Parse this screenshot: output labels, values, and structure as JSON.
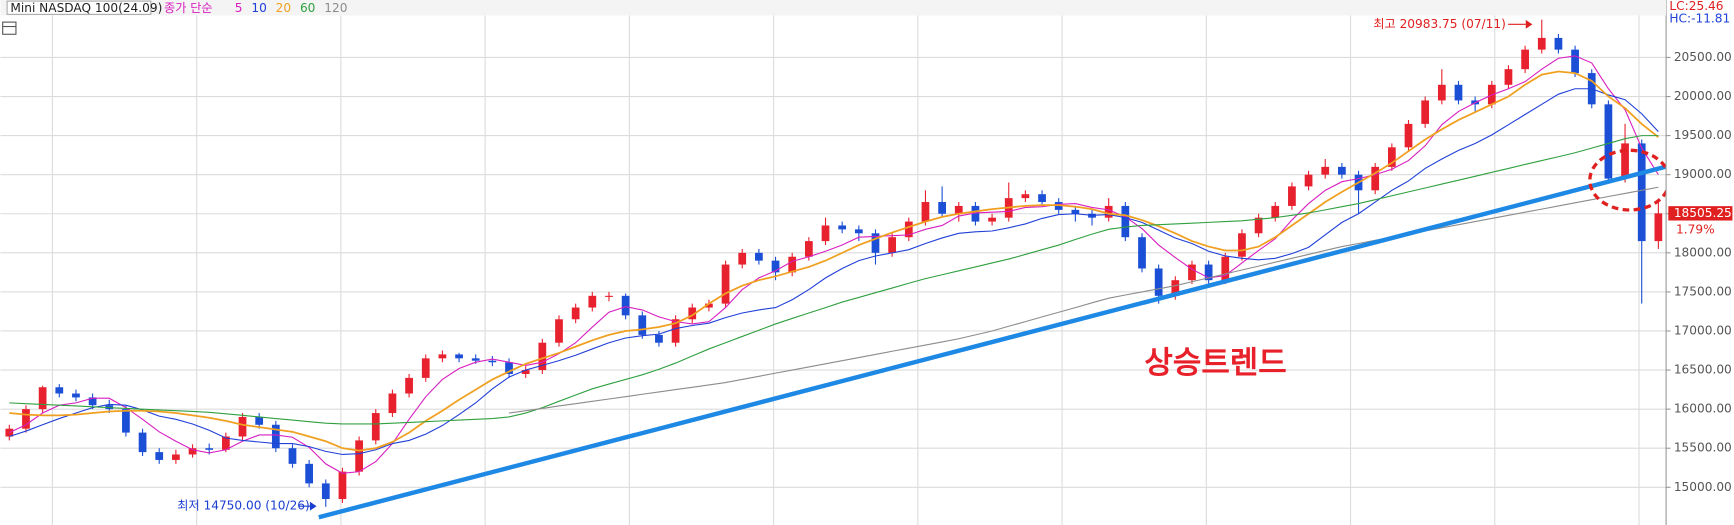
{
  "chart_data": {
    "type": "candlestick",
    "title": "Mini NASDAQ 100(24.09)",
    "ma_label": "종가 단순",
    "lc_label": "LC:25.46",
    "hc_label": "HC:-11.81",
    "high_annotation": "최고 20983.75 (07/11)",
    "low_annotation": "최저 14750.00 (10/26)",
    "trend_annotation": "상승트렌드",
    "change_label": "1.79%",
    "up_color": "#e8212e",
    "down_color": "#1a4fd6",
    "grid": true,
    "ylim": [
      14560,
      21235
    ],
    "yticks": [
      {
        "value": 15000,
        "label": "15000.00"
      },
      {
        "value": 15500,
        "label": "15500.00"
      },
      {
        "value": 16000,
        "label": "16000.00"
      },
      {
        "value": 16500,
        "label": "16500.00"
      },
      {
        "value": 17000,
        "label": "17000.00"
      },
      {
        "value": 17500,
        "label": "17500.00"
      },
      {
        "value": 18000,
        "label": "18000.00"
      },
      {
        "value": 18500,
        "label": "18500.00"
      },
      {
        "value": 19000,
        "label": "19000.00"
      },
      {
        "value": 19500,
        "label": "19500.00"
      },
      {
        "value": 20000,
        "label": "20000.00"
      },
      {
        "value": 20500,
        "label": "20500.00"
      }
    ],
    "ohlc": [
      [
        15650,
        15800,
        15600,
        15750
      ],
      [
        15750,
        16050,
        15700,
        16000
      ],
      [
        16000,
        16300,
        15950,
        16280
      ],
      [
        16280,
        16320,
        16150,
        16200
      ],
      [
        16200,
        16250,
        16100,
        16150
      ],
      [
        16150,
        16200,
        16000,
        16050
      ],
      [
        16050,
        16120,
        15950,
        16000
      ],
      [
        16000,
        16050,
        15650,
        15700
      ],
      [
        15700,
        15750,
        15400,
        15450
      ],
      [
        15450,
        15500,
        15300,
        15350
      ],
      [
        15350,
        15480,
        15300,
        15420
      ],
      [
        15420,
        15550,
        15380,
        15500
      ],
      [
        15500,
        15560,
        15420,
        15480
      ],
      [
        15480,
        15700,
        15450,
        15650
      ],
      [
        15650,
        15950,
        15600,
        15900
      ],
      [
        15900,
        15950,
        15750,
        15800
      ],
      [
        15800,
        15850,
        15450,
        15500
      ],
      [
        15500,
        15550,
        15250,
        15300
      ],
      [
        15300,
        15350,
        15000,
        15050
      ],
      [
        15050,
        15100,
        14750,
        14850
      ],
      [
        14850,
        15250,
        14800,
        15200
      ],
      [
        15200,
        15650,
        15150,
        15600
      ],
      [
        15600,
        16000,
        15550,
        15950
      ],
      [
        15950,
        16250,
        15900,
        16200
      ],
      [
        16200,
        16450,
        16150,
        16400
      ],
      [
        16400,
        16700,
        16350,
        16650
      ],
      [
        16650,
        16750,
        16600,
        16700
      ],
      [
        16700,
        16720,
        16600,
        16650
      ],
      [
        16650,
        16700,
        16580,
        16620
      ],
      [
        16620,
        16680,
        16550,
        16600
      ],
      [
        16600,
        16650,
        16400,
        16450
      ],
      [
        16450,
        16550,
        16400,
        16500
      ],
      [
        16500,
        16900,
        16450,
        16850
      ],
      [
        16850,
        17200,
        16800,
        17150
      ],
      [
        17150,
        17350,
        17100,
        17300
      ],
      [
        17300,
        17500,
        17250,
        17450
      ],
      [
        17450,
        17500,
        17380,
        17450
      ],
      [
        17450,
        17480,
        17150,
        17200
      ],
      [
        17200,
        17250,
        16900,
        16950
      ],
      [
        16950,
        17000,
        16800,
        16850
      ],
      [
        16850,
        17200,
        16800,
        17150
      ],
      [
        17150,
        17350,
        17100,
        17300
      ],
      [
        17300,
        17400,
        17250,
        17350
      ],
      [
        17350,
        17900,
        17300,
        17850
      ],
      [
        17850,
        18050,
        17800,
        18000
      ],
      [
        18000,
        18050,
        17850,
        17900
      ],
      [
        17900,
        17950,
        17650,
        17750
      ],
      [
        17750,
        18000,
        17700,
        17950
      ],
      [
        17950,
        18200,
        17900,
        18150
      ],
      [
        18150,
        18450,
        18100,
        18350
      ],
      [
        18350,
        18400,
        18250,
        18300
      ],
      [
        18300,
        18350,
        18150,
        18250
      ],
      [
        18250,
        18300,
        17850,
        18000
      ],
      [
        18000,
        18250,
        17950,
        18200
      ],
      [
        18200,
        18450,
        18150,
        18400
      ],
      [
        18400,
        18800,
        18350,
        18650
      ],
      [
        18650,
        18850,
        18450,
        18500
      ],
      [
        18500,
        18650,
        18400,
        18600
      ],
      [
        18600,
        18650,
        18350,
        18400
      ],
      [
        18400,
        18500,
        18350,
        18450
      ],
      [
        18450,
        18900,
        18400,
        18700
      ],
      [
        18700,
        18800,
        18650,
        18750
      ],
      [
        18750,
        18800,
        18600,
        18650
      ],
      [
        18650,
        18700,
        18500,
        18550
      ],
      [
        18550,
        18600,
        18400,
        18500
      ],
      [
        18500,
        18550,
        18350,
        18450
      ],
      [
        18450,
        18700,
        18400,
        18600
      ],
      [
        18600,
        18650,
        18150,
        18200
      ],
      [
        18200,
        18250,
        17750,
        17800
      ],
      [
        17800,
        17850,
        17350,
        17450
      ],
      [
        17450,
        17700,
        17400,
        17650
      ],
      [
        17650,
        17900,
        17600,
        17850
      ],
      [
        17850,
        17900,
        17550,
        17650
      ],
      [
        17650,
        18000,
        17600,
        17950
      ],
      [
        17950,
        18300,
        17900,
        18250
      ],
      [
        18250,
        18500,
        18200,
        18450
      ],
      [
        18450,
        18650,
        18400,
        18600
      ],
      [
        18600,
        18900,
        18550,
        18850
      ],
      [
        18850,
        19050,
        18800,
        19000
      ],
      [
        19000,
        19200,
        18950,
        19100
      ],
      [
        19100,
        19150,
        18950,
        19000
      ],
      [
        19000,
        19050,
        18500,
        18800
      ],
      [
        18800,
        19150,
        18750,
        19100
      ],
      [
        19100,
        19400,
        19050,
        19350
      ],
      [
        19350,
        19700,
        19300,
        19650
      ],
      [
        19650,
        20000,
        19600,
        19950
      ],
      [
        19950,
        20350,
        19900,
        20150
      ],
      [
        20150,
        20200,
        19900,
        19950
      ],
      [
        19950,
        20000,
        19800,
        19900
      ],
      [
        19900,
        20200,
        19850,
        20150
      ],
      [
        20150,
        20400,
        20100,
        20350
      ],
      [
        20350,
        20650,
        20300,
        20600
      ],
      [
        20600,
        20983.75,
        20550,
        20750
      ],
      [
        20750,
        20800,
        20550,
        20600
      ],
      [
        20600,
        20650,
        20250,
        20300
      ],
      [
        20300,
        20350,
        19850,
        19900
      ],
      [
        19900,
        19950,
        18900,
        18950
      ],
      [
        18950,
        19650,
        18900,
        19400
      ],
      [
        19400,
        19450,
        17350,
        18150
      ],
      [
        18150,
        18650,
        18050,
        18505.25
      ]
    ],
    "series": [
      {
        "name": "5",
        "color": "#d81fc0",
        "values": [
          15700,
          15800,
          15950,
          16050,
          16080,
          16140,
          16140,
          16020,
          15870,
          15710,
          15590,
          15480,
          15440,
          15480,
          15590,
          15670,
          15670,
          15640,
          15510,
          15300,
          15180,
          15200,
          15330,
          15560,
          15870,
          16160,
          16380,
          16520,
          16600,
          16640,
          16600,
          16560,
          16600,
          16710,
          16850,
          17050,
          17240,
          17310,
          17270,
          17180,
          17120,
          17090,
          17120,
          17300,
          17530,
          17680,
          17770,
          17890,
          17950,
          18020,
          18100,
          18200,
          18210,
          18220,
          18230,
          18300,
          18350,
          18470,
          18510,
          18520,
          18530,
          18580,
          18590,
          18620,
          18630,
          18580,
          18550,
          18460,
          18310,
          18100,
          17940,
          17790,
          17680,
          17710,
          17870,
          18030,
          18180,
          18420,
          18630,
          18800,
          18910,
          18950,
          19000,
          19070,
          19180,
          19370,
          19640,
          19810,
          19920,
          20020,
          20100,
          20190,
          20350,
          20490,
          20520,
          20430,
          20100,
          19830,
          19340,
          19000
        ]
      },
      {
        "name": "10",
        "color": "#2040d8",
        "values": [
          15650,
          15720,
          15800,
          15880,
          15950,
          16020,
          16060,
          16050,
          15990,
          15910,
          15870,
          15810,
          15730,
          15630,
          15600,
          15580,
          15560,
          15560,
          15520,
          15460,
          15420,
          15430,
          15480,
          15560,
          15600,
          15680,
          15790,
          15930,
          16080,
          16260,
          16410,
          16500,
          16560,
          16620,
          16690,
          16770,
          16850,
          16910,
          16940,
          16960,
          17030,
          17070,
          17100,
          17170,
          17230,
          17270,
          17300,
          17400,
          17530,
          17680,
          17800,
          17900,
          17960,
          18000,
          18040,
          18120,
          18190,
          18250,
          18270,
          18280,
          18320,
          18370,
          18440,
          18490,
          18500,
          18480,
          18490,
          18450,
          18390,
          18290,
          18190,
          18120,
          18020,
          17960,
          17930,
          17910,
          17930,
          17990,
          18070,
          18230,
          18390,
          18500,
          18650,
          18800,
          18920,
          19080,
          19200,
          19310,
          19400,
          19510,
          19640,
          19770,
          19900,
          20030,
          20100,
          20100,
          20020,
          19960,
          19780,
          19550
        ]
      },
      {
        "name": "20",
        "color": "#f0a020",
        "values": [
          15950,
          15930,
          15920,
          15920,
          15930,
          15950,
          15970,
          15980,
          15980,
          15970,
          15950,
          15920,
          15890,
          15850,
          15800,
          15770,
          15740,
          15710,
          15650,
          15590,
          15500,
          15470,
          15500,
          15580,
          15700,
          15850,
          15980,
          16120,
          16250,
          16380,
          16480,
          16580,
          16650,
          16720,
          16800,
          16880,
          16950,
          17000,
          17020,
          17050,
          17100,
          17200,
          17350,
          17480,
          17580,
          17650,
          17700,
          17760,
          17820,
          17900,
          18000,
          18100,
          18180,
          18260,
          18330,
          18400,
          18460,
          18500,
          18530,
          18560,
          18580,
          18600,
          18610,
          18610,
          18590,
          18560,
          18500,
          18480,
          18420,
          18340,
          18250,
          18150,
          18080,
          18030,
          18030,
          18080,
          18200,
          18350,
          18500,
          18650,
          18780,
          18900,
          19020,
          19150,
          19300,
          19450,
          19580,
          19700,
          19800,
          19900,
          20000,
          20150,
          20280,
          20320,
          20300,
          20200,
          20000,
          19850,
          19650,
          19480
        ]
      },
      {
        "name": "60",
        "color": "#30a040",
        "values": [
          16080,
          16070,
          16060,
          16050,
          16040,
          16030,
          16020,
          16010,
          16000,
          15990,
          15980,
          15970,
          15960,
          15940,
          15920,
          15900,
          15880,
          15860,
          15840,
          15820,
          15810,
          15810,
          15810,
          15820,
          15830,
          15840,
          15850,
          15860,
          15870,
          15880,
          15900,
          15950,
          16020,
          16100,
          16180,
          16260,
          16320,
          16380,
          16440,
          16510,
          16590,
          16680,
          16770,
          16850,
          16930,
          17010,
          17090,
          17160,
          17230,
          17300,
          17370,
          17430,
          17490,
          17550,
          17610,
          17670,
          17720,
          17770,
          17820,
          17870,
          17920,
          17980,
          18040,
          18100,
          18170,
          18240,
          18300,
          18330,
          18350,
          18360,
          18370,
          18380,
          18390,
          18400,
          18410,
          18430,
          18450,
          18480,
          18510,
          18550,
          18590,
          18630,
          18680,
          18730,
          18780,
          18830,
          18880,
          18930,
          18980,
          19030,
          19080,
          19130,
          19180,
          19230,
          19280,
          19340,
          19400,
          19460,
          19500,
          19500
        ]
      },
      {
        "name": "120",
        "color": "#8c8c8c",
        "values": [
          null,
          null,
          null,
          null,
          null,
          null,
          null,
          null,
          null,
          null,
          null,
          null,
          null,
          null,
          null,
          null,
          null,
          null,
          null,
          null,
          null,
          null,
          null,
          null,
          null,
          null,
          null,
          null,
          null,
          null,
          15950,
          15980,
          16010,
          16040,
          16070,
          16100,
          16130,
          16160,
          16190,
          16220,
          16250,
          16280,
          16310,
          16340,
          16380,
          16420,
          16460,
          16500,
          16540,
          16580,
          16620,
          16660,
          16700,
          16740,
          16780,
          16820,
          16860,
          16900,
          16950,
          17000,
          17060,
          17120,
          17180,
          17240,
          17300,
          17360,
          17420,
          17460,
          17500,
          17540,
          17580,
          17630,
          17680,
          17730,
          17780,
          17830,
          17880,
          17930,
          17980,
          18030,
          18080,
          18120,
          18160,
          18200,
          18240,
          18280,
          18320,
          18360,
          18400,
          18440,
          18480,
          18520,
          18560,
          18600,
          18640,
          18680,
          18720,
          18760,
          18800,
          18840
        ]
      }
    ]
  }
}
